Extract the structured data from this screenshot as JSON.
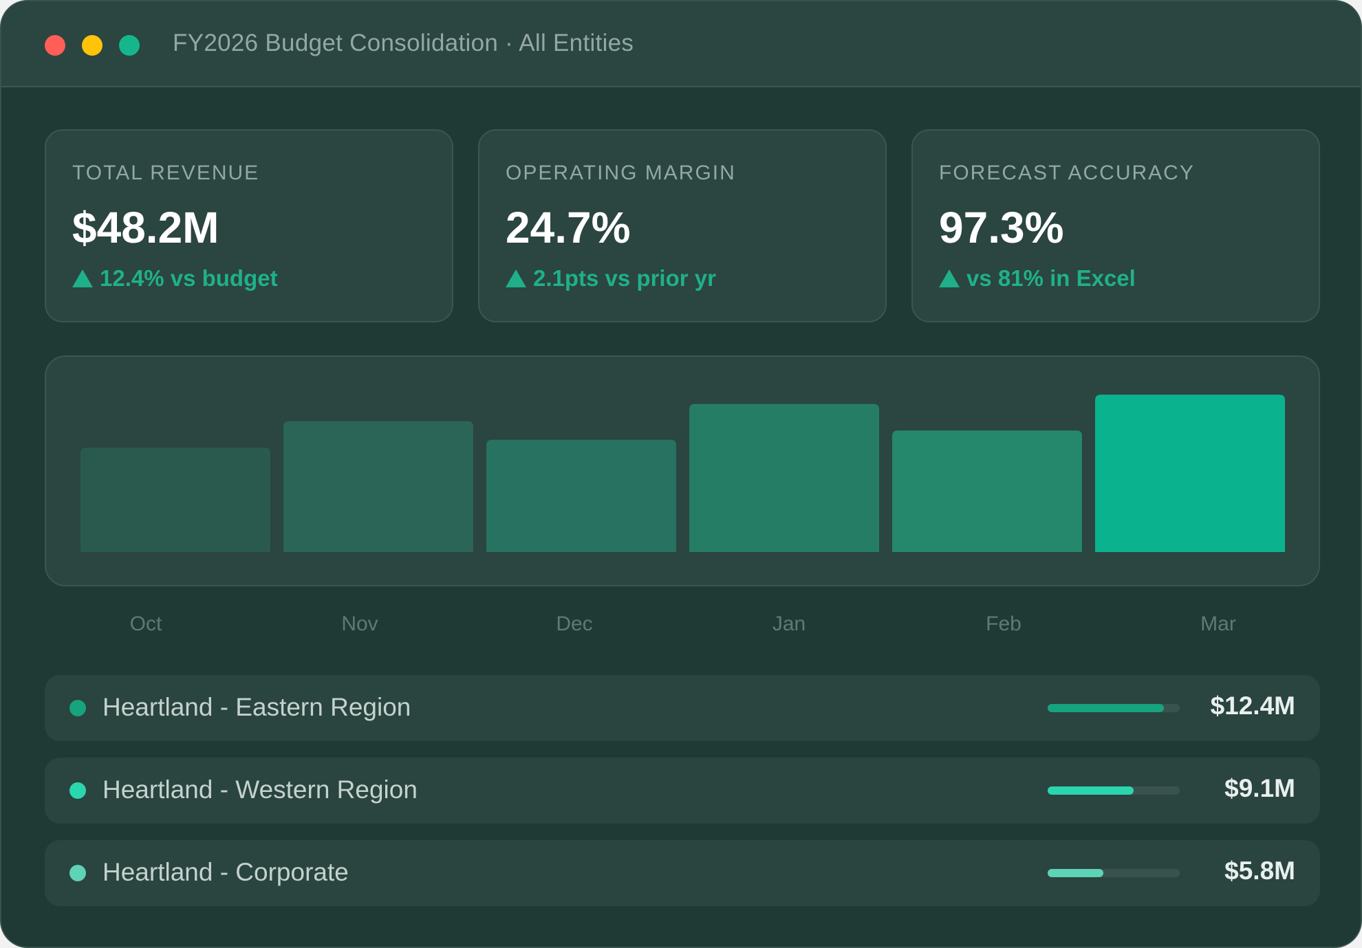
{
  "window": {
    "title": "FY2026 Budget Consolidation · All Entities",
    "controls": {
      "close_color": "#ff5f57",
      "minimize_color": "#ffc30a",
      "maximize_color": "#16b68d"
    }
  },
  "kpis": [
    {
      "label": "TOTAL REVENUE",
      "value": "$48.2M",
      "delta": "12.4% vs budget",
      "trend": "up"
    },
    {
      "label": "OPERATING MARGIN",
      "value": "24.7%",
      "delta": "2.1pts vs prior yr",
      "trend": "up"
    },
    {
      "label": "FORECAST ACCURACY",
      "value": "97.3%",
      "delta": "vs 81% in Excel",
      "trend": "up"
    }
  ],
  "chart_data": {
    "type": "bar",
    "categories": [
      "Oct",
      "Nov",
      "Dec",
      "Jan",
      "Feb",
      "Mar"
    ],
    "values": [
      67,
      84,
      72,
      95,
      78,
      101
    ],
    "colors": [
      "#2a5a4e",
      "#2b6558",
      "#277260",
      "#257d66",
      "#25876c",
      "#0ab38d"
    ],
    "title": "",
    "xlabel": "",
    "ylabel": "",
    "ylim": [
      0,
      105
    ],
    "grid": false
  },
  "entities": [
    {
      "name": "Heartland - Eastern Region",
      "value": "$12.4M",
      "share": 0.88,
      "color": "#16a37e"
    },
    {
      "name": "Heartland - Western Region",
      "value": "$9.1M",
      "share": 0.65,
      "color": "#2ad6ad"
    },
    {
      "name": "Heartland - Corporate",
      "value": "$5.8M",
      "share": 0.42,
      "color": "#5ed3b5"
    }
  ],
  "colors": {
    "accent": "#1fb08a",
    "background": "#1f3a35",
    "card": "#2b4540"
  }
}
